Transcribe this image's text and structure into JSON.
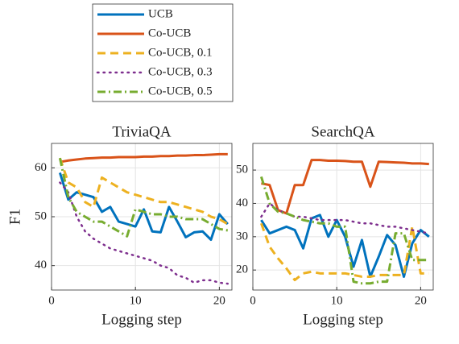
{
  "chart_data": [
    {
      "type": "line",
      "title": "TriviaQA",
      "xlabel": "Logging step",
      "ylabel": "F1",
      "x": [
        1,
        2,
        3,
        4,
        5,
        6,
        7,
        8,
        9,
        10,
        11,
        12,
        13,
        14,
        15,
        16,
        17,
        18,
        19,
        20,
        21
      ],
      "xlim": [
        0,
        21.5
      ],
      "xticks": [
        0,
        10,
        20
      ],
      "ylim": [
        35,
        65
      ],
      "yticks": [
        40,
        50,
        60
      ],
      "grid": true,
      "series": [
        {
          "name": "UCB",
          "color": "#0072BD",
          "linestyle": "solid",
          "values": [
            59,
            53.5,
            55,
            54.5,
            54,
            51,
            52,
            49,
            48.5,
            48,
            51.5,
            47,
            46.8,
            52,
            49,
            45.8,
            46.8,
            47,
            45.3,
            50.5,
            48.5
          ]
        },
        {
          "name": "Co-UCB",
          "color": "#D95319",
          "linestyle": "solid",
          "values": [
            61.2,
            61.5,
            61.7,
            61.9,
            62,
            62.1,
            62.1,
            62.2,
            62.2,
            62.2,
            62.3,
            62.3,
            62.4,
            62.4,
            62.5,
            62.5,
            62.6,
            62.6,
            62.7,
            62.8,
            62.8
          ]
        },
        {
          "name": "Co-UCB, 0.1",
          "color": "#EDB120",
          "linestyle": "dashed",
          "values": [
            62,
            57,
            56,
            53,
            52,
            58,
            57,
            56,
            55,
            54.5,
            54,
            53.5,
            53,
            53,
            52.5,
            52,
            51.5,
            51,
            50,
            49.5,
            48.5
          ]
        },
        {
          "name": "Co-UCB, 0.3",
          "color": "#7E2F8E",
          "linestyle": "dotted",
          "values": [
            57,
            55,
            50,
            47,
            45.5,
            44.5,
            43.5,
            43,
            42.5,
            42,
            41.5,
            41,
            40,
            39.5,
            38,
            37.5,
            36.5,
            37,
            37,
            36.5,
            36.3
          ]
        },
        {
          "name": "Co-UCB, 0.5",
          "color": "#77AC30",
          "linestyle": "dashdot",
          "values": [
            62,
            54,
            51,
            50,
            49,
            49,
            48,
            47,
            46,
            51.5,
            51,
            50.5,
            50.5,
            50,
            50,
            49.5,
            49.5,
            49.5,
            48.5,
            47.5,
            47.2
          ]
        }
      ]
    },
    {
      "type": "line",
      "title": "SearchQA",
      "xlabel": "Logging step",
      "x": [
        1,
        2,
        3,
        4,
        5,
        6,
        7,
        8,
        9,
        10,
        11,
        12,
        13,
        14,
        15,
        16,
        17,
        18,
        19,
        20,
        21
      ],
      "xlim": [
        0,
        21.5
      ],
      "xticks": [
        0,
        10,
        20
      ],
      "ylim": [
        14,
        58
      ],
      "yticks": [
        20,
        30,
        40,
        50
      ],
      "grid": true,
      "series": [
        {
          "name": "UCB",
          "color": "#0072BD",
          "linestyle": "solid",
          "values": [
            35,
            31,
            32,
            33,
            32,
            26.5,
            35.5,
            36.5,
            30,
            35,
            30,
            21,
            29,
            18,
            24,
            30.5,
            27.5,
            18,
            28,
            32,
            30
          ]
        },
        {
          "name": "Co-UCB",
          "color": "#D95319",
          "linestyle": "solid",
          "values": [
            46,
            45.5,
            38,
            37,
            45.5,
            45.5,
            53,
            53,
            52.8,
            52.8,
            52.7,
            52.5,
            52.5,
            45,
            52.5,
            52.4,
            52.3,
            52.2,
            52,
            52,
            51.8
          ]
        },
        {
          "name": "Co-UCB, 0.1",
          "color": "#EDB120",
          "linestyle": "dashed",
          "values": [
            34,
            27,
            23.5,
            20.5,
            17,
            19,
            19.5,
            19,
            19,
            19,
            19,
            18.5,
            18,
            18,
            18.5,
            18.5,
            18.5,
            18.5,
            33,
            19,
            19
          ]
        },
        {
          "name": "Co-UCB, 0.3",
          "color": "#7E2F8E",
          "linestyle": "dotted",
          "values": [
            36,
            40,
            38,
            37,
            36,
            36,
            35.5,
            35,
            35,
            35,
            35,
            34.5,
            34,
            34,
            33.5,
            33,
            33,
            32.5,
            32,
            31.5,
            31
          ]
        },
        {
          "name": "Co-UCB, 0.5",
          "color": "#77AC30",
          "linestyle": "dashdot",
          "values": [
            48,
            40,
            37.5,
            37,
            36,
            35,
            34.5,
            34,
            34,
            33,
            33,
            16.5,
            16,
            16,
            16.5,
            16.5,
            31,
            31,
            23,
            23,
            23
          ]
        }
      ]
    }
  ]
}
